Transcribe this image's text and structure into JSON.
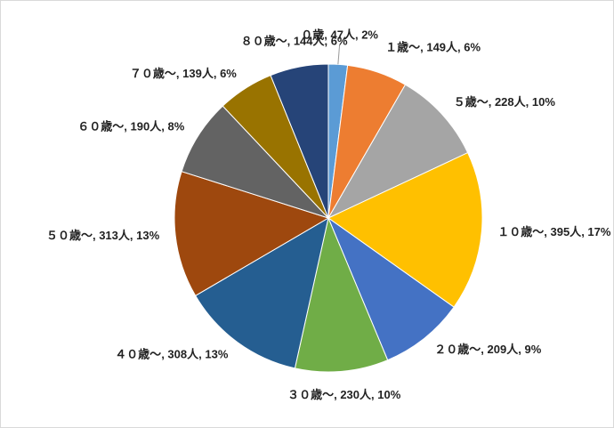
{
  "chart_data": {
    "type": "pie",
    "categories": [
      "０歳",
      "１歳～",
      "５歳～",
      "１０歳～",
      "２０歳～",
      "３０歳～",
      "４０歳～",
      "５０歳～",
      "６０歳～",
      "７０歳～",
      "８０歳～"
    ],
    "values": [
      47,
      149,
      228,
      395,
      209,
      230,
      308,
      313,
      190,
      139,
      144
    ],
    "value_labels": [
      "47人",
      "149人",
      "228人",
      "395人",
      "209人",
      "230人",
      "308人",
      "313人",
      "190人",
      "139人",
      "144人"
    ],
    "percents": [
      2,
      6,
      10,
      17,
      9,
      10,
      13,
      13,
      8,
      6,
      6
    ],
    "percent_labels": [
      "2%",
      "6%",
      "10%",
      "17%",
      "9%",
      "10%",
      "13%",
      "13%",
      "8%",
      "6%",
      "6%"
    ],
    "label_separator": ", ",
    "colors": [
      "#5b9bd5",
      "#ed7d31",
      "#a5a5a5",
      "#ffc000",
      "#4472c4",
      "#70ad47",
      "#255e91",
      "#9e480e",
      "#636363",
      "#997300",
      "#264478"
    ]
  }
}
